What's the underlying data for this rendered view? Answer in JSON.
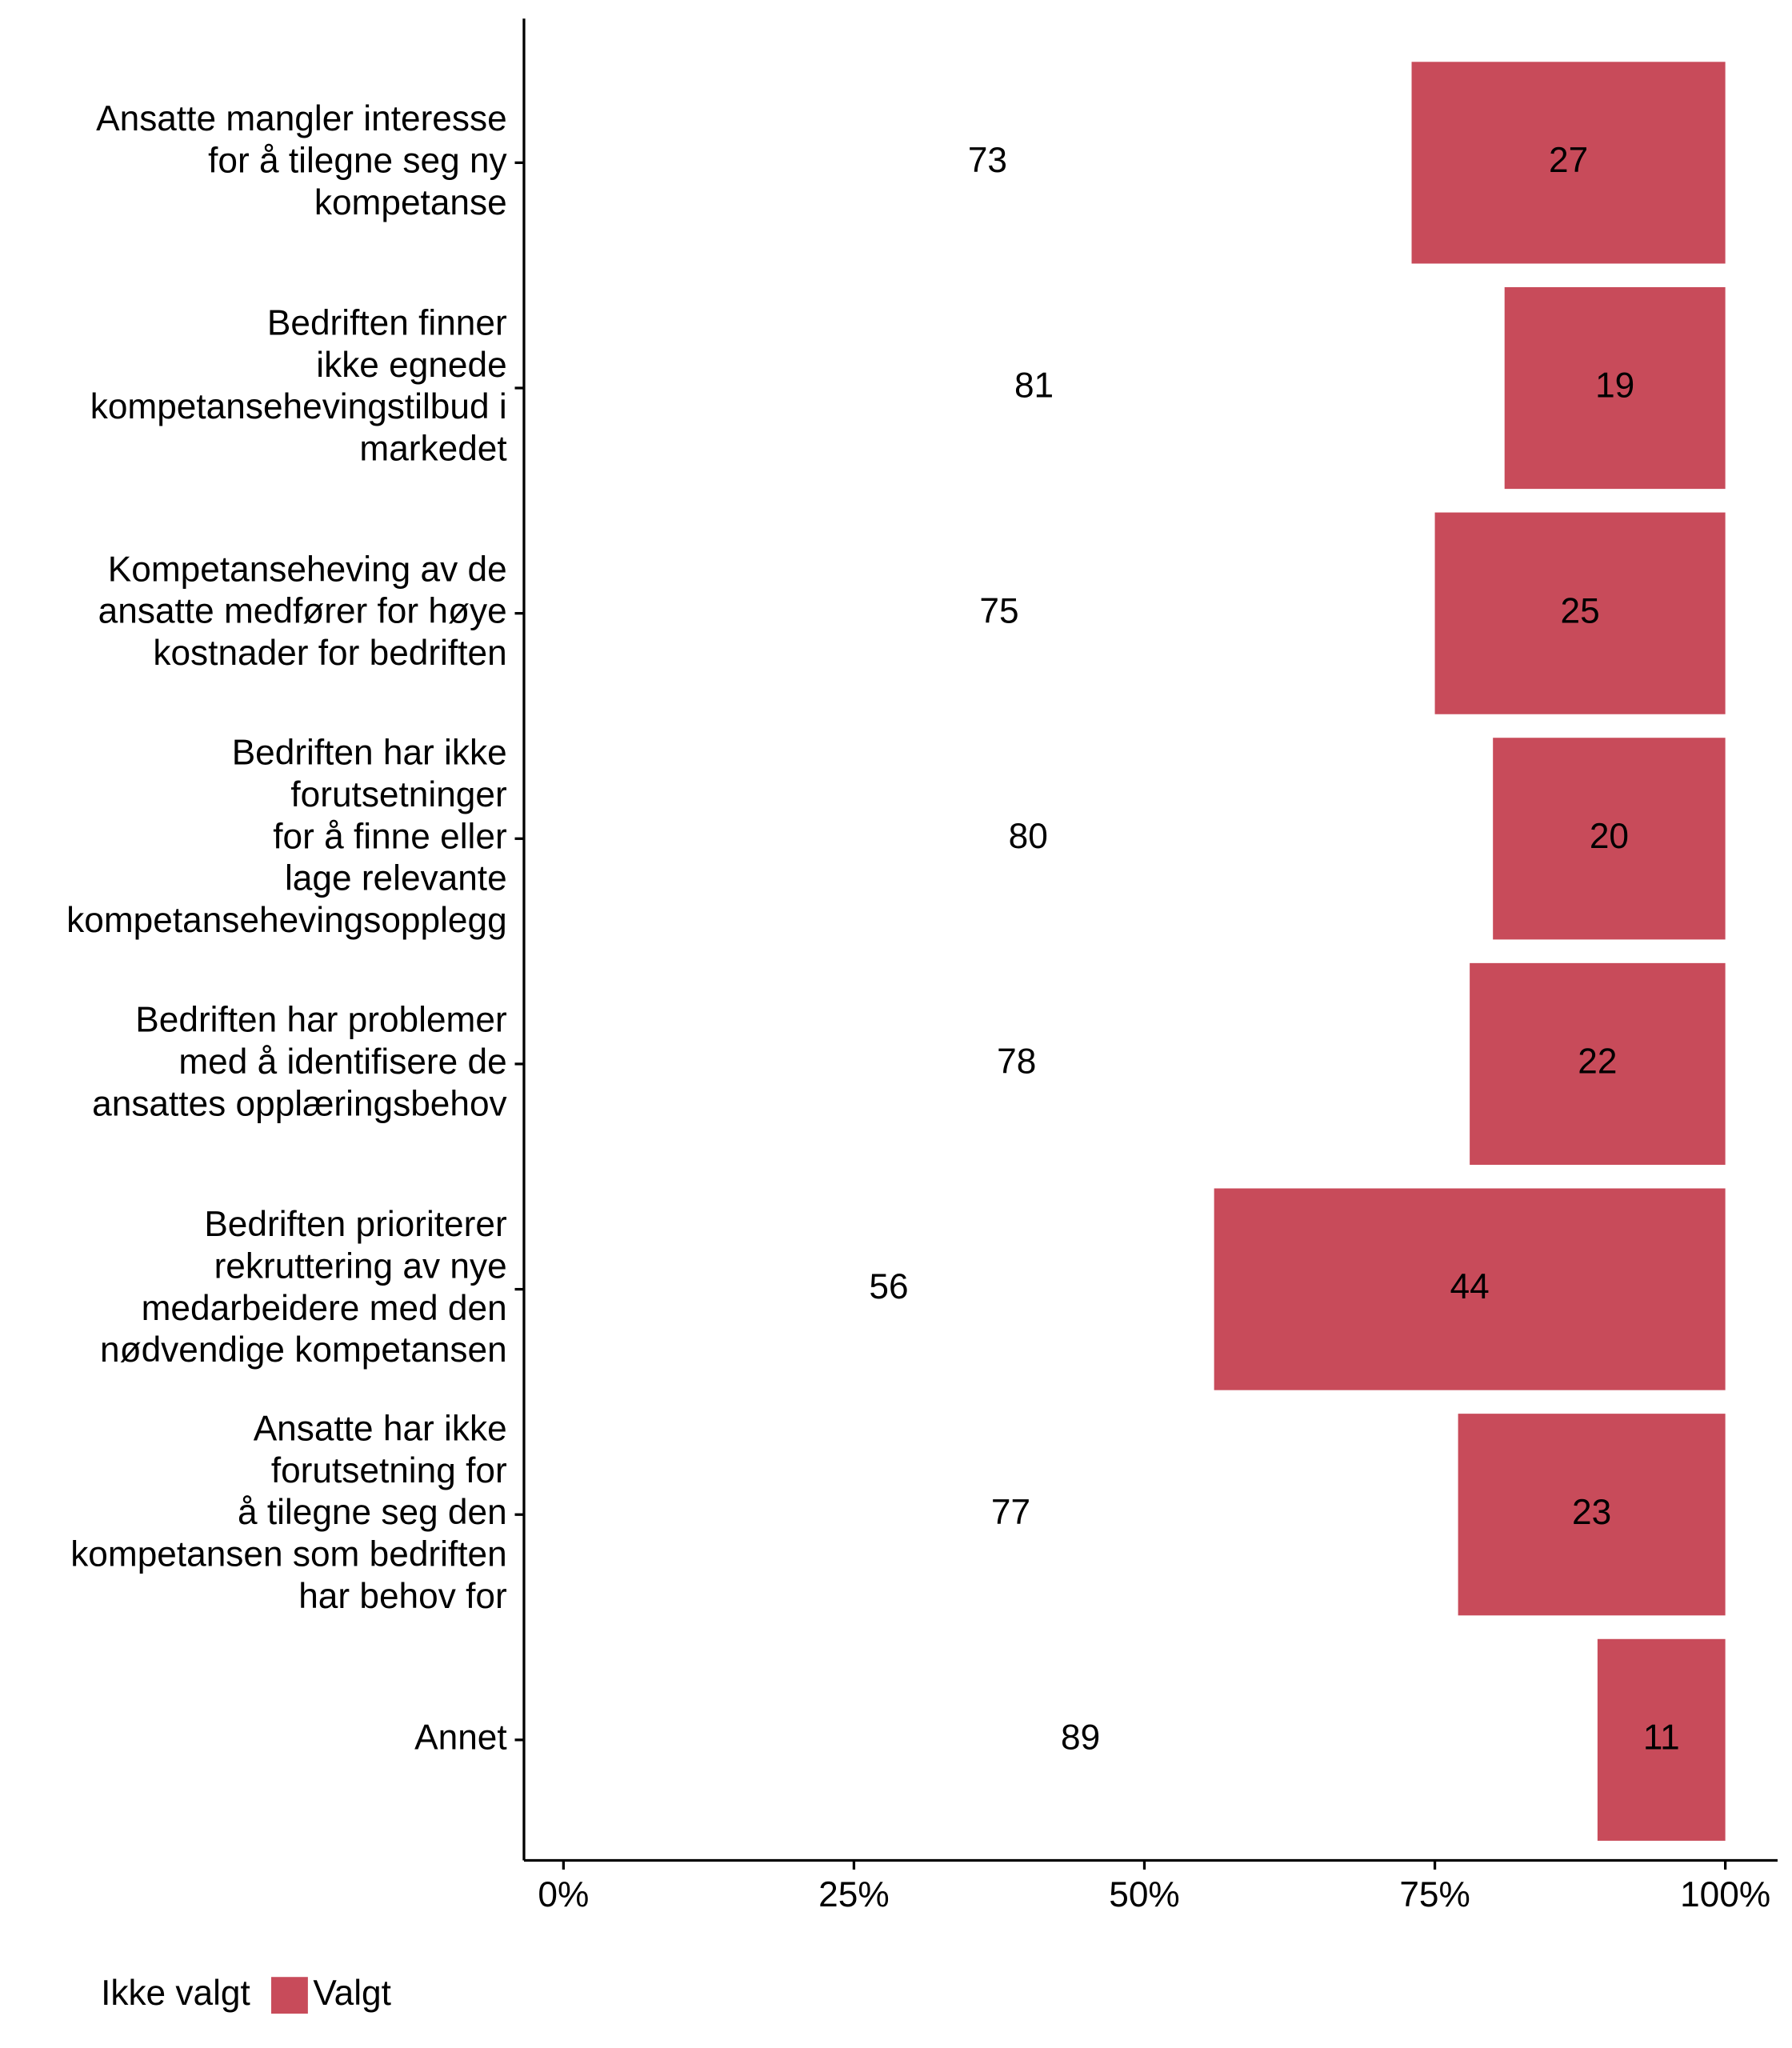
{
  "chart_data": {
    "type": "stacked_barh",
    "categories": [
      "Ansatte mangler interesse\nfor å tilegne seg ny\nkompetanse",
      "Bedriften finner\nikke egnede\nkompetansehevingstilbud i\nmarkedet",
      "Kompetanseheving av de\nansatte medfører for høye\nkostnader for bedriften",
      "Bedriften har ikke\nforutsetninger\nfor å finne eller\nlage relevante\nkompetansehevingsopplegg",
      "Bedriften har problemer\nmed å identifisere de\nansattes opplæringsbehov",
      "Bedriften prioriterer\nrekruttering av nye\nmedarbeidere med den\nnødvendige kompetansen",
      "Ansatte har ikke\nforutsetning for\nå tilegne seg den\nkompetansen som bedriften\nhar behov for",
      "Annet"
    ],
    "series": [
      {
        "name": "Ikke valgt",
        "color": "#ffffff",
        "label_color": "#000000",
        "values": [
          73,
          81,
          75,
          80,
          78,
          56,
          77,
          89
        ]
      },
      {
        "name": "Valgt",
        "color": "#c84b5a",
        "label_color": "#ffffff",
        "values": [
          27,
          19,
          25,
          20,
          22,
          44,
          23,
          11
        ]
      }
    ],
    "xlim": [
      -3.4,
      104.5
    ],
    "xticks": [
      {
        "value": 0,
        "label": "0%"
      },
      {
        "value": 25,
        "label": "25%"
      },
      {
        "value": 50,
        "label": "50%"
      },
      {
        "value": 75,
        "label": "75%"
      },
      {
        "value": 100,
        "label": "100%"
      }
    ],
    "legend": "bottom"
  }
}
